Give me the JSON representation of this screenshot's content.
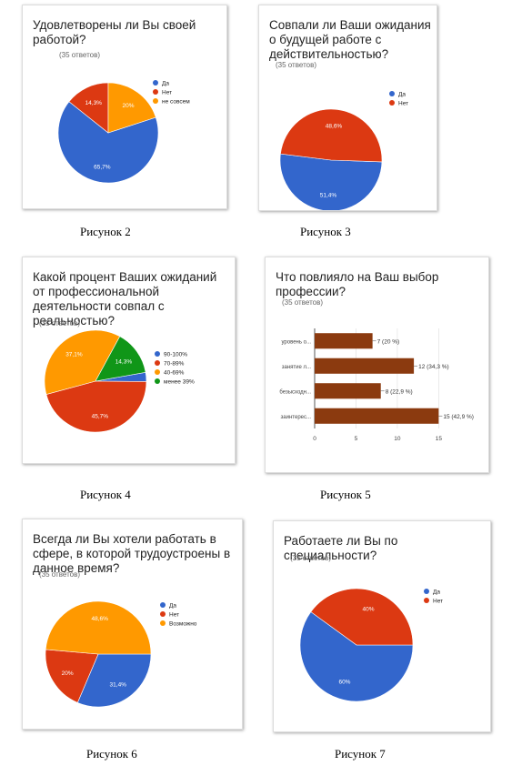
{
  "chart_data": [
    {
      "type": "pie",
      "title": "Удовлетворены ли Вы своей работой?",
      "subtitle": "(35 ответов)",
      "categories": [
        "Да",
        "Нет",
        "не совсем"
      ],
      "values": [
        65.7,
        14.3,
        20
      ],
      "value_labels": [
        "65,7%",
        "14,3%",
        "20%"
      ],
      "colors": [
        "#3366cc",
        "#dc3912",
        "#ff9900"
      ]
    },
    {
      "type": "pie",
      "title": "Совпали ли Ваши ожидания о будущей работе с действительностью?",
      "subtitle": "(35 ответов)",
      "categories": [
        "Да",
        "Нет"
      ],
      "values": [
        51.4,
        48.6
      ],
      "value_labels": [
        "51,4%",
        "48,6%"
      ],
      "colors": [
        "#3366cc",
        "#dc3912"
      ]
    },
    {
      "type": "pie",
      "title": "Какой процент Ваших ожиданий от профессиональной деятельности совпал с реальностью?",
      "subtitle": "(35 ответов)",
      "categories": [
        "90-100%",
        "70-89%",
        "40-69%",
        "менее 39%"
      ],
      "values": [
        2.9,
        45.7,
        37.1,
        14.3
      ],
      "value_labels": [
        null,
        "45,7%",
        "37,1%",
        "14,3%"
      ],
      "colors": [
        "#3366cc",
        "#dc3912",
        "#ff9900",
        "#109618"
      ]
    },
    {
      "type": "hbar",
      "title": "Что повлияло на Ваш выбор профессии?",
      "subtitle": "(35 ответов)",
      "categories": [
        "уровень о...",
        "занятие л...",
        "безысходн...",
        "заинтерес..."
      ],
      "values": [
        7,
        12,
        8,
        15
      ],
      "value_labels": [
        "7 (20 %)",
        "12 (34,3 %)",
        "8 (22,9 %)",
        "15 (42,9 %)"
      ],
      "color": "#8b3a0f",
      "xlim": [
        0,
        16.5
      ],
      "xticks": [
        0,
        5,
        10,
        15
      ],
      "grid": true
    },
    {
      "type": "pie",
      "title": "Всегда ли Вы хотели работать в сфере, в которой трудоустроены в данное время?",
      "subtitle": "(35 ответов)",
      "categories": [
        "Да",
        "Нет",
        "Возможно"
      ],
      "values": [
        31.4,
        20,
        48.6
      ],
      "value_labels": [
        "31,4%",
        "20%",
        "48,6%"
      ],
      "colors": [
        "#3366cc",
        "#dc3912",
        "#ff9900"
      ]
    },
    {
      "type": "pie",
      "title": "Работаете ли Вы по специальности?",
      "subtitle": "(35 ответов)",
      "categories": [
        "Да",
        "Нет"
      ],
      "values": [
        60,
        40
      ],
      "value_labels": [
        "60%",
        "40%"
      ],
      "colors": [
        "#3366cc",
        "#dc3912"
      ]
    }
  ],
  "captions": [
    "Рисунок 2",
    "Рисунок 3",
    "Рисунок 4",
    "Рисунок 5",
    "Рисунок 6",
    "Рисунок 7"
  ]
}
